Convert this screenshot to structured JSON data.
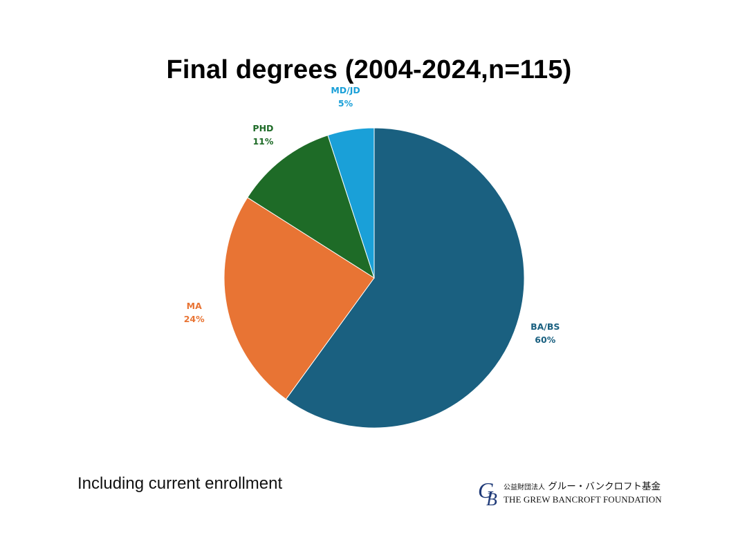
{
  "chart_data": {
    "type": "pie",
    "title": "Final degrees (2004-2024,n=115)",
    "slices": [
      {
        "label": "BA/BS",
        "pct_label": "60%",
        "value": 60,
        "color": "#1a6080"
      },
      {
        "label": "MA",
        "pct_label": "24%",
        "value": 24,
        "color": "#e87434"
      },
      {
        "label": "PHD",
        "pct_label": "11%",
        "value": 11,
        "color": "#1e6b27"
      },
      {
        "label": "MD/JD",
        "pct_label": "5%",
        "value": 5,
        "color": "#1aa0d8"
      }
    ]
  },
  "footnote": "Including current enrollment",
  "logo": {
    "mark": "GB",
    "jp_prefix": "公益財団法人",
    "jp_name": "グルー・バンクロフト基金",
    "en_name": "THE GREW BANCROFT FOUNDATION",
    "color": "#1f3a78"
  }
}
